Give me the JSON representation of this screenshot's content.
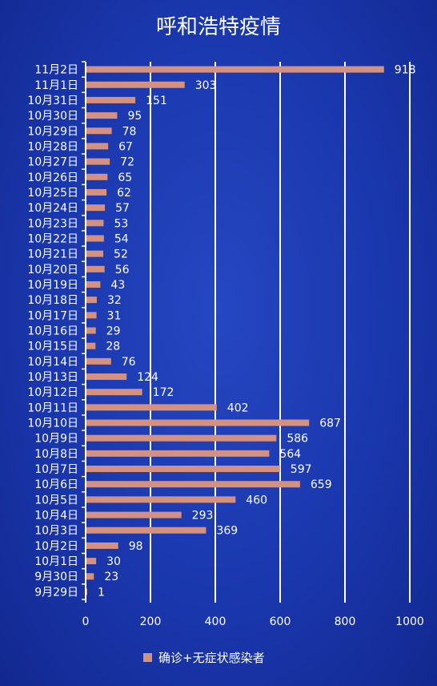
{
  "chart_data": {
    "type": "bar",
    "orientation": "horizontal",
    "title": "呼和浩特疫情",
    "categories": [
      "11月2日",
      "11月1日",
      "10月31日",
      "10月30日",
      "10月29日",
      "10月28日",
      "10月27日",
      "10月26日",
      "10月25日",
      "10月24日",
      "10月23日",
      "10月22日",
      "10月21日",
      "10月20日",
      "10月19日",
      "10月18日",
      "10月17日",
      "10月16日",
      "10月15日",
      "10月14日",
      "10月13日",
      "10月12日",
      "10月11日",
      "10月10日",
      "10月9日",
      "10月8日",
      "10月7日",
      "10月6日",
      "10月5日",
      "10月4日",
      "10月3日",
      "10月2日",
      "10月1日",
      "9月30日",
      "9月29日"
    ],
    "series": [
      {
        "name": "确诊+无症状感染者",
        "values": [
          918,
          303,
          151,
          95,
          78,
          67,
          72,
          65,
          62,
          57,
          53,
          54,
          52,
          56,
          43,
          32,
          31,
          29,
          28,
          76,
          124,
          172,
          402,
          687,
          586,
          564,
          597,
          659,
          460,
          293,
          369,
          98,
          30,
          23,
          1
        ]
      }
    ],
    "xlim": [
      0,
      1000
    ],
    "xticks": [
      "0",
      "200",
      "400",
      "600",
      "800",
      "1000"
    ],
    "grid": true,
    "legend_position": "bottom",
    "bar_color": "#d4917f",
    "background_color": "#1a37ad",
    "grid_color": "#ffffff"
  }
}
